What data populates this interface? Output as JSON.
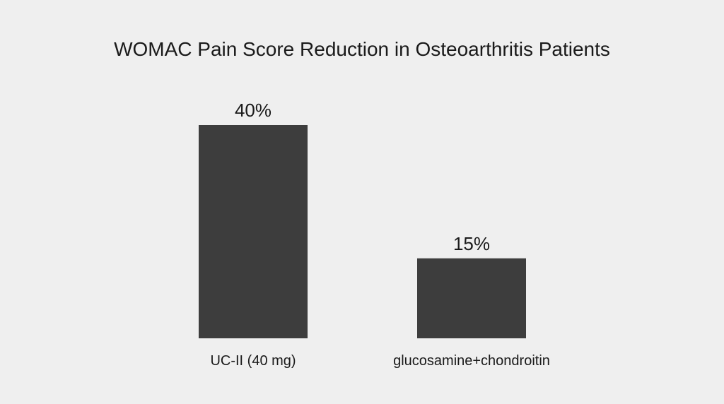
{
  "chart_data": {
    "type": "bar",
    "title": "WOMAC Pain Score Reduction in Osteoarthritis Patients",
    "categories": [
      "UC-II (40 mg)",
      "glucosamine+chondroitin"
    ],
    "values": [
      40,
      15
    ],
    "value_labels": [
      "40%",
      "15%"
    ],
    "ylim": [
      0,
      40
    ],
    "grid": false,
    "axes_visible": false,
    "bar_color": "#3d3d3d",
    "background_color": "#efefef"
  }
}
